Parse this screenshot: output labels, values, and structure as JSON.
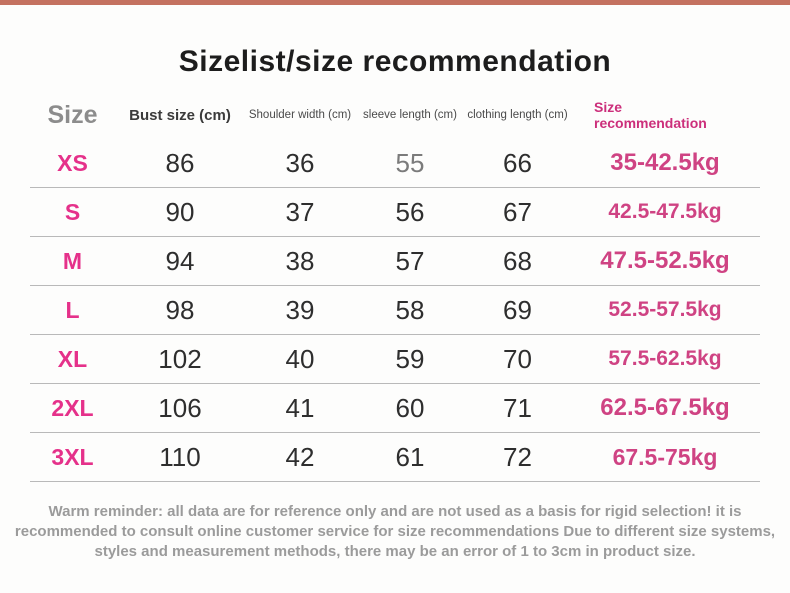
{
  "page": {
    "title": "Sizelist/size recommendation"
  },
  "colors": {
    "top_bar": "#c47260",
    "size_label_pink": "#e5318a",
    "recommendation_value_pink": "#cf4383",
    "recommendation_header_pink": "#cc2f7b",
    "separator_gray": "#b9b9b9",
    "footer_gray": "#9b9b9b"
  },
  "table": {
    "headers": {
      "size": "Size",
      "bust": "Bust size (cm)",
      "shoulder": "Shoulder width (cm)",
      "sleeve": "sleeve length (cm)",
      "clothing": "clothing length (cm)",
      "recommendation": "Size recommendation"
    },
    "rows": [
      {
        "size": "XS",
        "bust": "86",
        "shoulder": "36",
        "sleeve": "55",
        "clothing": "66",
        "recommendation": "35-42.5kg"
      },
      {
        "size": "S",
        "bust": "90",
        "shoulder": "37",
        "sleeve": "56",
        "clothing": "67",
        "recommendation": "42.5-47.5kg"
      },
      {
        "size": "M",
        "bust": "94",
        "shoulder": "38",
        "sleeve": "57",
        "clothing": "68",
        "recommendation": "47.5-52.5kg"
      },
      {
        "size": "L",
        "bust": "98",
        "shoulder": "39",
        "sleeve": "58",
        "clothing": "69",
        "recommendation": "52.5-57.5kg"
      },
      {
        "size": "XL",
        "bust": "102",
        "shoulder": "40",
        "sleeve": "59",
        "clothing": "70",
        "recommendation": "57.5-62.5kg"
      },
      {
        "size": "2XL",
        "bust": "106",
        "shoulder": "41",
        "sleeve": "60",
        "clothing": "71",
        "recommendation": "62.5-67.5kg"
      },
      {
        "size": "3XL",
        "bust": "110",
        "shoulder": "42",
        "sleeve": "61",
        "clothing": "72",
        "recommendation": "67.5-75kg"
      }
    ]
  },
  "footer": {
    "reminder": "Warm reminder: all data are for reference only and are not used as a basis for rigid selection! it is recommended to consult online customer service for size recommendations Due to different size systems, styles and measurement methods, there may be an error of 1 to 3cm in product size."
  }
}
